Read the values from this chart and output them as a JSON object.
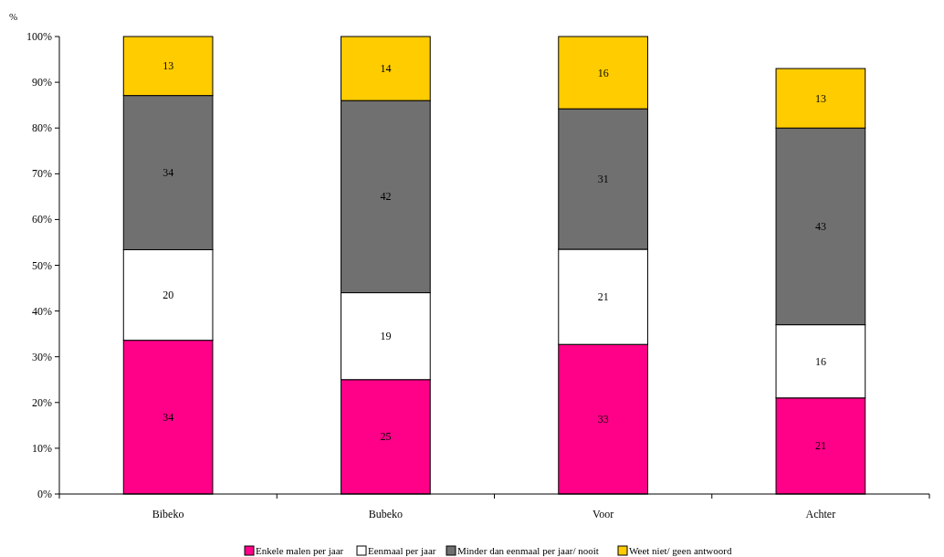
{
  "chart_data": {
    "type": "bar",
    "stacked": true,
    "ylabel": "%",
    "categories": [
      "Bibeko",
      "Bubeko",
      "Voor",
      "Achter"
    ],
    "series": [
      {
        "name": "Enkele malen per jaar",
        "color": "#ff0088",
        "values": [
          33.6,
          25,
          32.7,
          21
        ],
        "value_labels": [
          "34",
          "25",
          "33",
          "21"
        ]
      },
      {
        "name": "Eenmaal per jaar",
        "color": "#ffffff",
        "values": [
          19.8,
          19,
          20.8,
          16
        ],
        "value_labels": [
          "20",
          "19",
          "21",
          "16"
        ]
      },
      {
        "name": "Minder dan eenmaal per jaar/ nooit",
        "color": "#707070",
        "values": [
          33.7,
          42,
          30.7,
          43
        ],
        "value_labels": [
          "34",
          "42",
          "31",
          "43"
        ]
      },
      {
        "name": "Weet niet/ geen antwoord",
        "color": "#ffcc00",
        "values": [
          12.9,
          14,
          15.8,
          13
        ],
        "value_labels": [
          "13",
          "14",
          "16",
          "13"
        ]
      }
    ],
    "ylim": [
      0,
      100
    ],
    "yticks": [
      {
        "value": 0,
        "label": "0%"
      },
      {
        "value": 10,
        "label": "10%"
      },
      {
        "value": 20,
        "label": "20%"
      },
      {
        "value": 30,
        "label": "30%"
      },
      {
        "value": 40,
        "label": "40%"
      },
      {
        "value": 50,
        "label": "50%"
      },
      {
        "value": 60,
        "label": "60%"
      },
      {
        "value": 70,
        "label": "70%"
      },
      {
        "value": 80,
        "label": "80%"
      },
      {
        "value": 90,
        "label": "90%"
      },
      {
        "value": 100,
        "label": "100%"
      }
    ],
    "grid": false,
    "legend": "bottom"
  }
}
